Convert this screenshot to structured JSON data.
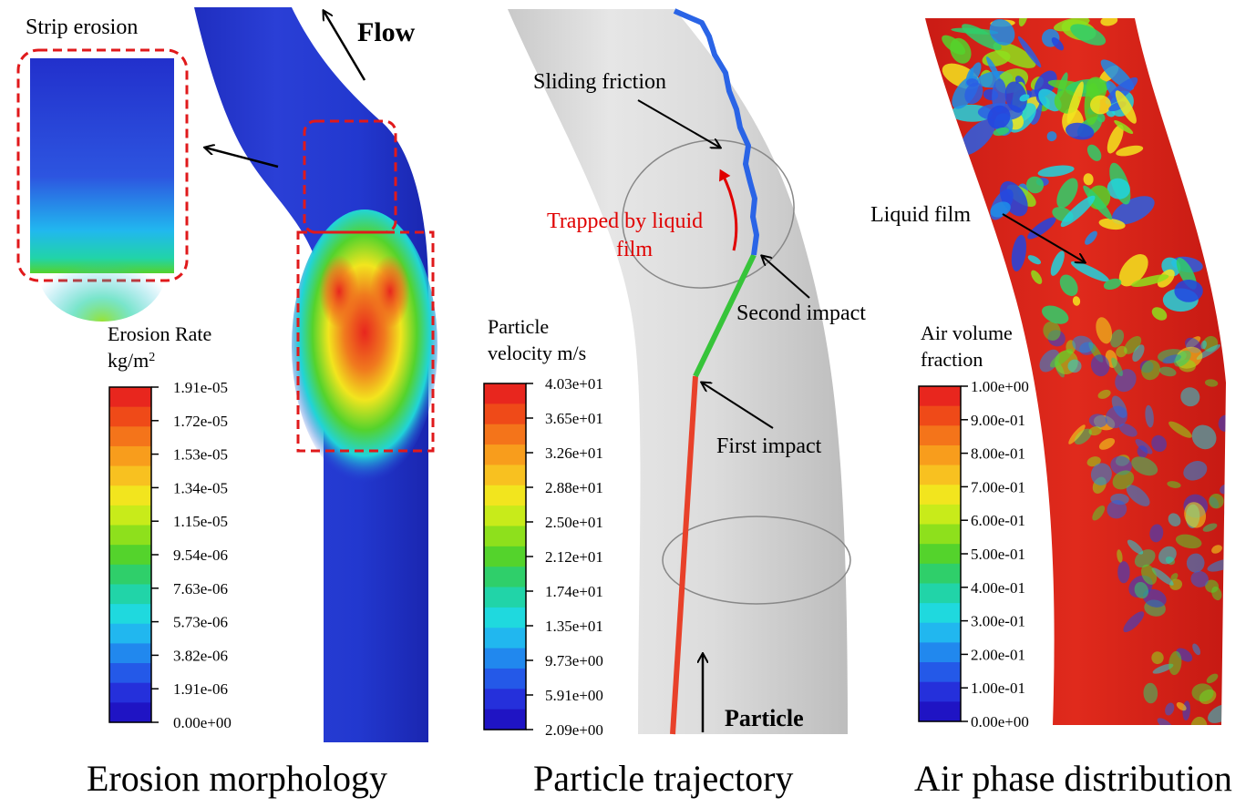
{
  "panels": {
    "erosion": {
      "caption": "Erosion morphology",
      "strip_label": "Strip erosion",
      "flow_label": "Flow",
      "legend": {
        "title_line1": "Erosion Rate",
        "title_line2_base": "kg/m",
        "title_line2_sup": "2",
        "ticks": [
          "1.91e-05",
          "1.72e-05",
          "1.53e-05",
          "1.34e-05",
          "1.15e-05",
          "9.54e-06",
          "7.63e-06",
          "5.73e-06",
          "3.82e-06",
          "1.91e-06",
          "0.00e+00"
        ]
      }
    },
    "trajectory": {
      "caption": "Particle trajectory",
      "labels": {
        "sliding": "Sliding friction",
        "trapped_line1": "Trapped by liquid",
        "trapped_line2": "film",
        "second": "Second impact",
        "first": "First impact",
        "particle": "Particle"
      },
      "legend": {
        "title_line1": "Particle",
        "title_line2": "velocity m/s",
        "ticks": [
          "4.03e+01",
          "3.65e+01",
          "3.26e+01",
          "2.88e+01",
          "2.50e+01",
          "2.12e+01",
          "1.74e+01",
          "1.35e+01",
          "9.73e+00",
          "5.91e+00",
          "2.09e+00"
        ]
      }
    },
    "air": {
      "caption": "Air phase distribution",
      "liquid_label": "Liquid film",
      "legend": {
        "title_line1": "Air volume",
        "title_line2": "fraction",
        "ticks": [
          "1.00e+00",
          "9.00e-01",
          "8.00e-01",
          "7.00e-01",
          "6.00e-01",
          "5.00e-01",
          "4.00e-01",
          "3.00e-01",
          "2.00e-01",
          "1.00e-01",
          "0.00e+00"
        ]
      }
    }
  },
  "colormap": [
    "#e8261e",
    "#ef4a18",
    "#f4741a",
    "#f89d1c",
    "#f8c120",
    "#f2e51e",
    "#c8eb1a",
    "#8ee01c",
    "#54d32c",
    "#2fcf6a",
    "#21d4a8",
    "#1fd9de",
    "#21b7ef",
    "#2188ee",
    "#2459e8",
    "#2530db",
    "#1f14c4"
  ]
}
